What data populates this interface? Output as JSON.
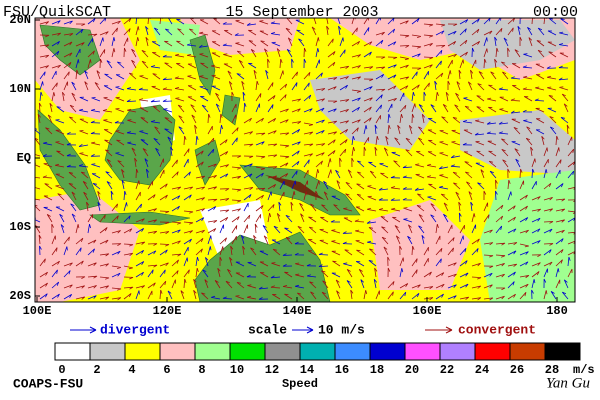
{
  "header": {
    "source": "FSU/QuikSCAT",
    "date": "15 September 2003",
    "time": "00:00"
  },
  "axes": {
    "lat_labels": [
      "20N",
      "10N",
      "EQ",
      "10S",
      "20S"
    ],
    "lon_labels": [
      "100E",
      "120E",
      "140E",
      "160E",
      "180"
    ]
  },
  "legend": {
    "divergent": "divergent",
    "scale": "scale",
    "scale_value": "10 m/s",
    "convergent": "convergent"
  },
  "colorbar": {
    "colors": [
      "#ffffff",
      "#c8c8c8",
      "#ffff00",
      "#ffc0c0",
      "#a0ff90",
      "#00e000",
      "#909090",
      "#00b0b0",
      "#3c8cff",
      "#0000d0",
      "#ff50ff",
      "#b080ff",
      "#ff0000",
      "#c83c00",
      "#000000"
    ],
    "labels": [
      "0",
      "2",
      "4",
      "6",
      "8",
      "10",
      "12",
      "14",
      "16",
      "18",
      "20",
      "22",
      "24",
      "26",
      "28"
    ],
    "unit": "m/s",
    "title": "Speed"
  },
  "footer": {
    "left": "COAPS-FSU",
    "right": "Yan Gu"
  }
}
